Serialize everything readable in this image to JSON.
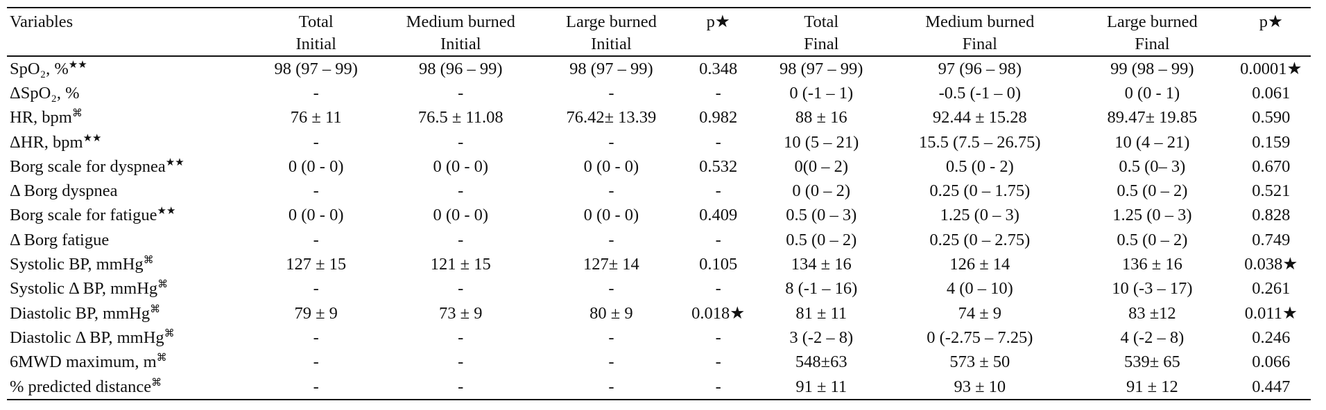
{
  "table": {
    "columns": [
      {
        "line1": "Variables",
        "line2": ""
      },
      {
        "line1": "Total",
        "line2": "Initial"
      },
      {
        "line1": "Medium burned",
        "line2": "Initial"
      },
      {
        "line1": "Large burned",
        "line2": "Initial"
      },
      {
        "line1": "p★",
        "line2": ""
      },
      {
        "line1": "Total",
        "line2": "Final"
      },
      {
        "line1": "Medium burned",
        "line2": "Final"
      },
      {
        "line1": "Large burned",
        "line2": "Final"
      },
      {
        "line1": "p★",
        "line2": ""
      }
    ],
    "rows": [
      {
        "variable": "SpO₂, %",
        "marker": "★★",
        "cells": [
          "98 (97 – 99)",
          "98 (96 – 99)",
          "98 (97 – 99)",
          "0.348",
          "98 (97 – 99)",
          "97 (96 – 98)",
          "99 (98 – 99)",
          "0.0001★"
        ]
      },
      {
        "variable": "ΔSpO₂, %",
        "marker": "",
        "cells": [
          "-",
          "-",
          "-",
          "-",
          "0 (-1 – 1)",
          "-0.5 (-1 – 0)",
          "0 (0 - 1)",
          "0.061"
        ]
      },
      {
        "variable": "HR, bpm",
        "marker": "⌘",
        "cells": [
          "76 ± 11",
          "76.5 ± 11.08",
          "76.42± 13.39",
          "0.982",
          "88 ± 16",
          "92.44 ± 15.28",
          "89.47± 19.85",
          "0.590"
        ]
      },
      {
        "variable": "ΔHR, bpm",
        "marker": "★★",
        "cells": [
          "-",
          "-",
          "-",
          "-",
          "10 (5 – 21)",
          "15.5 (7.5 – 26.75)",
          "10 (4 – 21)",
          "0.159"
        ]
      },
      {
        "variable": "Borg scale for dyspnea",
        "marker": "★★",
        "cells": [
          "0 (0 - 0)",
          "0 (0 - 0)",
          "0 (0 - 0)",
          "0.532",
          "0(0 – 2)",
          "0.5 (0 - 2)",
          "0.5 (0– 3)",
          "0.670"
        ]
      },
      {
        "variable": "Δ Borg dyspnea",
        "marker": "",
        "cells": [
          "-",
          "-",
          "-",
          "-",
          "0 (0 – 2)",
          "0.25 (0 – 1.75)",
          "0.5 (0 – 2)",
          "0.521"
        ]
      },
      {
        "variable": "Borg scale for fatigue",
        "marker": "★★",
        "cells": [
          "0 (0 - 0)",
          "0 (0 - 0)",
          "0 (0 - 0)",
          "0.409",
          "0.5 (0 – 3)",
          "1.25 (0 – 3)",
          "1.25 (0 – 3)",
          "0.828"
        ]
      },
      {
        "variable": "Δ Borg fatigue",
        "marker": "",
        "cells": [
          "-",
          "-",
          "-",
          "-",
          "0.5 (0 – 2)",
          "0.25 (0 – 2.75)",
          "0.5 (0 – 2)",
          "0.749"
        ]
      },
      {
        "variable": "Systolic BP, mmHg",
        "marker": "⌘",
        "cells": [
          "127 ± 15",
          "121 ± 15",
          "127± 14",
          "0.105",
          "134 ± 16",
          "126 ± 14",
          "136 ± 16",
          "0.038★"
        ]
      },
      {
        "variable": "Systolic Δ BP, mmHg",
        "marker": "⌘",
        "cells": [
          "-",
          "-",
          "-",
          "-",
          "8 (-1 – 16)",
          "4 (0 – 10)",
          "10 (-3 – 17)",
          "0.261"
        ]
      },
      {
        "variable": "Diastolic BP, mmHg",
        "marker": "⌘",
        "cells": [
          "79 ± 9",
          "73 ± 9",
          "80 ± 9",
          "0.018★",
          "81 ± 11",
          "74 ± 9",
          "83 ±12",
          "0.011★"
        ]
      },
      {
        "variable": "Diastolic Δ BP, mmHg",
        "marker": "⌘",
        "cells": [
          "-",
          "-",
          "-",
          "-",
          "3 (-2 – 8)",
          "0 (-2.75 – 7.25)",
          "4 (-2 – 8)",
          "0.246"
        ]
      },
      {
        "variable": "6MWD maximum, m",
        "marker": "⌘",
        "cells": [
          "-",
          "-",
          "-",
          "-",
          "548±63",
          "573 ± 50",
          "539± 65",
          "0.066"
        ]
      },
      {
        "variable": "% predicted distance",
        "marker": "⌘",
        "cells": [
          "-",
          "-",
          "-",
          "-",
          "91 ± 11",
          "93 ± 10",
          "91 ± 12",
          "0.447"
        ]
      }
    ]
  }
}
